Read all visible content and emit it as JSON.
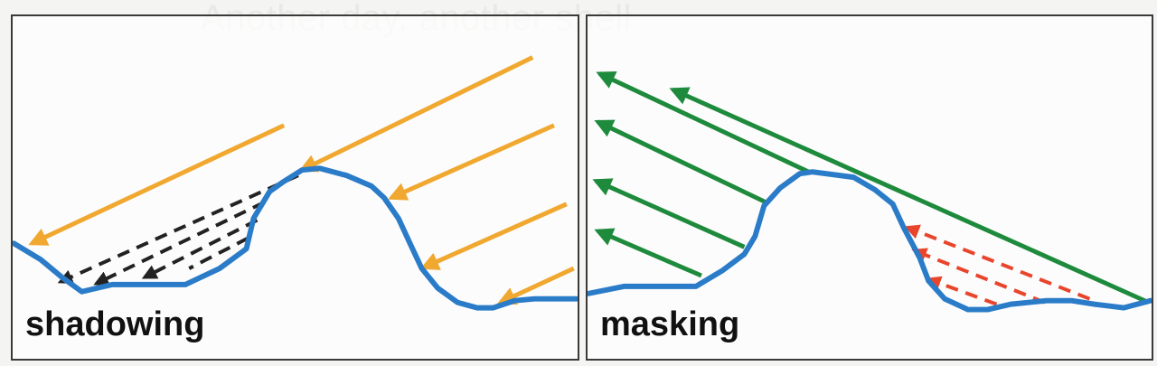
{
  "background": {
    "watermark_text": "Another day, another shell"
  },
  "panels": [
    {
      "id": "shadowing",
      "label": "shadowing"
    },
    {
      "id": "masking",
      "label": "masking"
    }
  ],
  "colors": {
    "surface": "#2a7bc8",
    "incoming_light": "#f0a830",
    "shadow_rays": "#222222",
    "visible_rays": "#1e8a3c",
    "masked_rays": "#e8452c"
  }
}
